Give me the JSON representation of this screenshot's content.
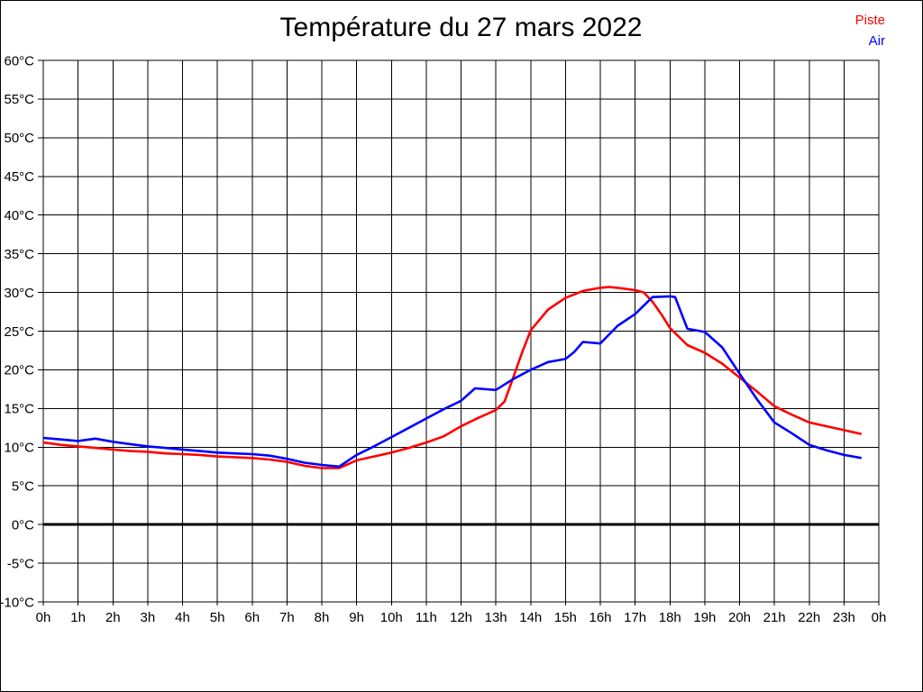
{
  "page": {
    "background": "#ffffff",
    "border_color": "#000000"
  },
  "header": {
    "title": "Température du 27 mars 2022"
  },
  "legend": {
    "position": "top-right",
    "items": [
      {
        "label": "Piste",
        "color": "#ff0000"
      },
      {
        "label": "Air",
        "color": "#0000ff"
      }
    ]
  },
  "chart_data": {
    "type": "line",
    "title": "Température du 27 mars 2022",
    "xlabel": "",
    "ylabel": "",
    "xlim": [
      0,
      24
    ],
    "ylim": [
      -10,
      60
    ],
    "grid": true,
    "grid_color": "#000000",
    "zero_line": {
      "value": 0,
      "color": "#000000",
      "stroke_width": 3
    },
    "legend_position": "top-right",
    "x_ticks": {
      "values": [
        0,
        1,
        2,
        3,
        4,
        5,
        6,
        7,
        8,
        9,
        10,
        11,
        12,
        13,
        14,
        15,
        16,
        17,
        18,
        19,
        20,
        21,
        22,
        23,
        24
      ],
      "labels": [
        "0h",
        "1h",
        "2h",
        "3h",
        "4h",
        "5h",
        "6h",
        "7h",
        "8h",
        "9h",
        "10h",
        "11h",
        "12h",
        "13h",
        "14h",
        "15h",
        "16h",
        "17h",
        "18h",
        "19h",
        "20h",
        "21h",
        "22h",
        "23h",
        "0h"
      ]
    },
    "y_ticks": {
      "values": [
        -10,
        -5,
        0,
        5,
        10,
        15,
        20,
        25,
        30,
        35,
        40,
        45,
        50,
        55,
        60
      ],
      "labels": [
        "-10°C",
        "-5°C",
        "0°C",
        "5°C",
        "10°C",
        "15°C",
        "20°C",
        "25°C",
        "30°C",
        "35°C",
        "40°C",
        "45°C",
        "50°C",
        "55°C",
        "60°C"
      ]
    },
    "series": [
      {
        "name": "Piste",
        "color": "#ff0000",
        "stroke_width": 2.6,
        "points": [
          [
            0,
            10.6
          ],
          [
            0.5,
            10.3
          ],
          [
            1,
            10.1
          ],
          [
            1.5,
            9.9
          ],
          [
            2,
            9.7
          ],
          [
            2.5,
            9.5
          ],
          [
            3,
            9.4
          ],
          [
            3.5,
            9.2
          ],
          [
            4,
            9.1
          ],
          [
            4.5,
            9.0
          ],
          [
            5,
            8.8
          ],
          [
            5.5,
            8.7
          ],
          [
            6,
            8.6
          ],
          [
            6.5,
            8.4
          ],
          [
            7,
            8.1
          ],
          [
            7.5,
            7.6
          ],
          [
            8,
            7.3
          ],
          [
            8.5,
            7.3
          ],
          [
            9,
            8.3
          ],
          [
            9.5,
            8.8
          ],
          [
            10,
            9.3
          ],
          [
            10.5,
            9.9
          ],
          [
            11,
            10.6
          ],
          [
            11.5,
            11.4
          ],
          [
            12,
            12.7
          ],
          [
            12.5,
            13.8
          ],
          [
            13,
            14.8
          ],
          [
            13.25,
            15.9
          ],
          [
            13.5,
            19.0
          ],
          [
            13.75,
            22.2
          ],
          [
            14,
            25.1
          ],
          [
            14.5,
            27.8
          ],
          [
            15,
            29.3
          ],
          [
            15.5,
            30.2
          ],
          [
            16,
            30.6
          ],
          [
            16.25,
            30.7
          ],
          [
            16.5,
            30.6
          ],
          [
            17,
            30.3
          ],
          [
            17.25,
            30.0
          ],
          [
            17.5,
            28.8
          ],
          [
            17.75,
            27.2
          ],
          [
            18,
            25.4
          ],
          [
            18.5,
            23.2
          ],
          [
            19,
            22.2
          ],
          [
            19.5,
            20.8
          ],
          [
            20,
            19.0
          ],
          [
            20.5,
            17.2
          ],
          [
            21,
            15.3
          ],
          [
            21.5,
            14.2
          ],
          [
            22,
            13.2
          ],
          [
            22.5,
            12.7
          ],
          [
            23,
            12.2
          ],
          [
            23.5,
            11.7
          ]
        ]
      },
      {
        "name": "Air",
        "color": "#0000ff",
        "stroke_width": 2.6,
        "points": [
          [
            0,
            11.2
          ],
          [
            0.5,
            11.0
          ],
          [
            1,
            10.8
          ],
          [
            1.5,
            11.1
          ],
          [
            2,
            10.7
          ],
          [
            2.5,
            10.4
          ],
          [
            3,
            10.1
          ],
          [
            3.5,
            9.9
          ],
          [
            4,
            9.7
          ],
          [
            4.5,
            9.5
          ],
          [
            5,
            9.3
          ],
          [
            5.5,
            9.2
          ],
          [
            6,
            9.1
          ],
          [
            6.5,
            8.9
          ],
          [
            7,
            8.5
          ],
          [
            7.5,
            8.0
          ],
          [
            8,
            7.7
          ],
          [
            8.5,
            7.5
          ],
          [
            9,
            9.0
          ],
          [
            9.5,
            10.1
          ],
          [
            10,
            11.3
          ],
          [
            10.5,
            12.5
          ],
          [
            11,
            13.7
          ],
          [
            11.5,
            14.9
          ],
          [
            12,
            16.0
          ],
          [
            12.4,
            17.6
          ],
          [
            13,
            17.4
          ],
          [
            13.5,
            18.8
          ],
          [
            14,
            20.0
          ],
          [
            14.5,
            21.0
          ],
          [
            15,
            21.4
          ],
          [
            15.25,
            22.3
          ],
          [
            15.5,
            23.6
          ],
          [
            16,
            23.4
          ],
          [
            16.5,
            25.7
          ],
          [
            17,
            27.2
          ],
          [
            17.5,
            29.4
          ],
          [
            18,
            29.5
          ],
          [
            18.15,
            29.4
          ],
          [
            18.5,
            25.3
          ],
          [
            19,
            24.9
          ],
          [
            19.5,
            22.9
          ],
          [
            20,
            19.5
          ],
          [
            20.5,
            16.2
          ],
          [
            21,
            13.2
          ],
          [
            21.5,
            11.8
          ],
          [
            22,
            10.3
          ],
          [
            22.5,
            9.6
          ],
          [
            23,
            9.0
          ],
          [
            23.5,
            8.6
          ]
        ]
      }
    ]
  }
}
